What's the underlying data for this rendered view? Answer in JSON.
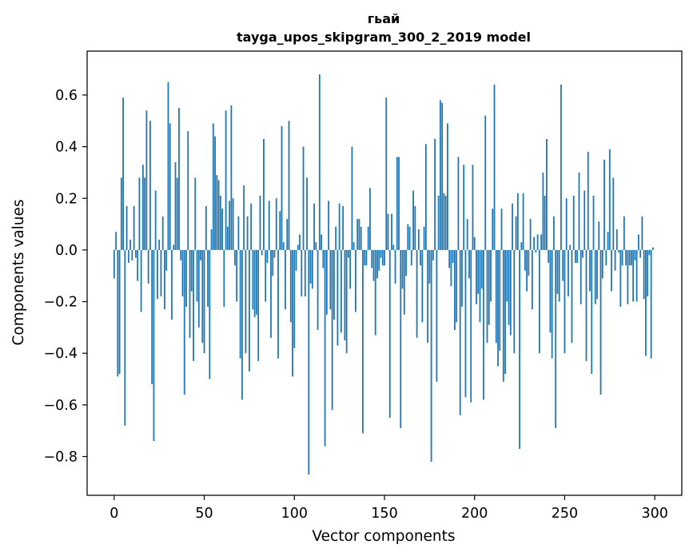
{
  "chart_data": {
    "type": "bar",
    "title": "гьай",
    "subtitle": "tayga_upos_skipgram_300_2_2019 model",
    "xlabel": "Vector components",
    "ylabel": "Components values",
    "xlim": [
      -15,
      315
    ],
    "ylim": [
      -0.95,
      0.77
    ],
    "xticks": [
      0,
      50,
      100,
      150,
      200,
      250,
      300
    ],
    "yticks": [
      -0.8,
      -0.6,
      -0.4,
      -0.2,
      0.0,
      0.2,
      0.4,
      0.6
    ],
    "ytick_labels": [
      "−0.8",
      "−0.6",
      "−0.4",
      "−0.2",
      "0.0",
      "0.2",
      "0.4",
      "0.6"
    ],
    "xtick_labels": [
      "0",
      "50",
      "100",
      "150",
      "200",
      "250",
      "300"
    ],
    "bar_color": "#1f77b4",
    "series": [
      {
        "name": "гьай",
        "x_start": 0,
        "values": [
          -0.11,
          0.07,
          -0.49,
          -0.48,
          0.28,
          0.59,
          -0.68,
          0.17,
          -0.05,
          0.04,
          -0.04,
          0.17,
          -0.03,
          -0.12,
          0.28,
          -0.24,
          0.33,
          0.28,
          0.54,
          -0.13,
          0.5,
          -0.52,
          -0.74,
          0.23,
          -0.19,
          0.04,
          -0.18,
          0.13,
          -0.23,
          -0.08,
          0.65,
          0.49,
          -0.27,
          0.02,
          0.34,
          0.28,
          0.55,
          -0.04,
          -0.18,
          -0.56,
          -0.22,
          0.46,
          -0.34,
          -0.16,
          -0.43,
          0.28,
          -0.2,
          -0.3,
          -0.04,
          -0.36,
          -0.4,
          0.17,
          -0.22,
          -0.5,
          0.08,
          0.49,
          0.44,
          0.29,
          0.27,
          0.21,
          0.16,
          -0.22,
          0.54,
          0.09,
          0.19,
          0.56,
          0.2,
          -0.06,
          -0.2,
          0.13,
          -0.42,
          -0.58,
          0.25,
          -0.4,
          0.13,
          -0.47,
          0.18,
          -0.23,
          -0.26,
          -0.25,
          -0.43,
          0.21,
          -0.02,
          0.43,
          -0.2,
          -0.05,
          0.19,
          -0.34,
          -0.1,
          -0.03,
          0.2,
          -0.42,
          0.15,
          0.48,
          0.03,
          -0.23,
          0.12,
          0.5,
          -0.28,
          -0.49,
          -0.38,
          -0.08,
          0.02,
          0.06,
          -0.18,
          0.4,
          -0.18,
          0.28,
          -0.87,
          -0.13,
          -0.15,
          0.18,
          0.03,
          -0.31,
          0.68,
          0.06,
          -0.07,
          -0.76,
          -0.25,
          0.19,
          -0.23,
          -0.62,
          -0.27,
          0.09,
          -0.37,
          0.18,
          -0.32,
          0.17,
          -0.35,
          -0.4,
          -0.03,
          -0.15,
          0.4,
          0.03,
          -0.24,
          0.12,
          0.12,
          0.09,
          -0.71,
          -0.06,
          -0.06,
          0.09,
          0.24,
          -0.07,
          -0.12,
          -0.33,
          -0.11,
          -0.08,
          -0.03,
          -0.06,
          -0.06,
          0.59,
          0.14,
          -0.65,
          0.14,
          0.02,
          -0.13,
          0.36,
          0.36,
          -0.69,
          -0.15,
          -0.25,
          -0.1,
          0.1,
          0.09,
          -0.06,
          0.23,
          0.17,
          -0.34,
          0.08,
          -0.06,
          -0.28,
          0.09,
          0.41,
          -0.36,
          -0.13,
          -0.82,
          -0.04,
          0.43,
          -0.51,
          0.21,
          0.58,
          0.57,
          0.22,
          0.21,
          0.49,
          -0.07,
          -0.14,
          -0.05,
          -0.31,
          -0.28,
          0.36,
          -0.64,
          -0.22,
          0.33,
          -0.57,
          0.12,
          -0.11,
          -0.59,
          0.33,
          0.05,
          -0.21,
          -0.17,
          -0.28,
          -0.15,
          -0.58,
          0.52,
          -0.36,
          -0.29,
          -0.2,
          0.16,
          0.64,
          -0.36,
          -0.45,
          -0.39,
          0.16,
          -0.51,
          -0.48,
          -0.2,
          -0.29,
          -0.33,
          0.18,
          -0.4,
          0.13,
          0.22,
          -0.77,
          0.03,
          0.22,
          -0.08,
          -0.16,
          -0.1,
          0.12,
          -0.23,
          0.05,
          -0.01,
          0.06,
          -0.4,
          0.06,
          0.3,
          0.21,
          0.43,
          -0.05,
          -0.32,
          -0.42,
          0.13,
          -0.69,
          -0.17,
          -0.2,
          0.64,
          -0.12,
          -0.4,
          0.2,
          -0.18,
          0.02,
          -0.36,
          0.21,
          -0.05,
          -0.05,
          0.3,
          -0.21,
          -0.03,
          0.23,
          -0.43,
          0.38,
          -0.16,
          -0.48,
          0.21,
          -0.21,
          -0.19,
          0.11,
          -0.56,
          -0.11,
          0.35,
          -0.06,
          0.07,
          0.39,
          -0.16,
          0.28,
          -0.08,
          0.08,
          -0.01,
          -0.22,
          -0.06,
          0.13,
          -0.06,
          -0.21,
          -0.06,
          -0.06,
          -0.2,
          -0.04,
          -0.2,
          0.06,
          -0.03,
          0.13,
          -0.19,
          -0.41,
          -0.18,
          -0.02,
          -0.42,
          0.01
        ]
      }
    ]
  }
}
